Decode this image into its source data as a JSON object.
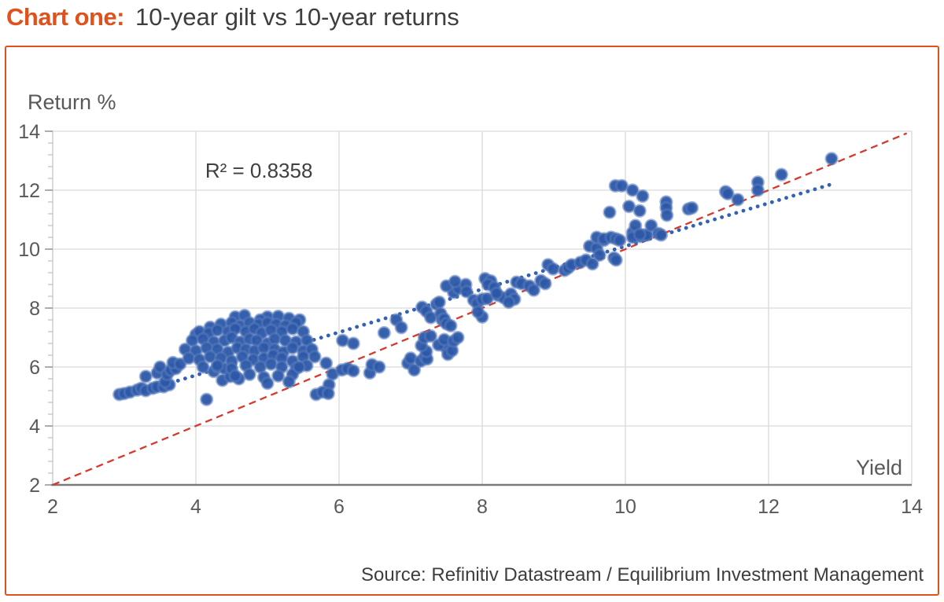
{
  "page": {
    "title_label": "Chart one:",
    "title_text": "10-year gilt vs 10-year returns",
    "source": "Source: Refinitiv Datastream / Equilibrium Investment Management"
  },
  "chart_data": {
    "type": "scatter",
    "title": "10-year gilt vs 10-year returns",
    "xlabel": "Yield",
    "ylabel": "Return %",
    "xlim": [
      2,
      14
    ],
    "ylim": [
      2,
      14
    ],
    "xticks": [
      2,
      4,
      6,
      8,
      10,
      12,
      14
    ],
    "yticks": [
      2,
      4,
      6,
      8,
      10,
      12,
      14
    ],
    "y_minor_unit": 0.4,
    "grid": true,
    "legend": false,
    "r2_annotation": {
      "text": "R² = 0.8358",
      "x": 4.13,
      "y": 12.43
    },
    "identity_line": {
      "style": "dashed",
      "from": [
        2,
        2
      ],
      "to": [
        13.93,
        13.93
      ]
    },
    "trendline": {
      "style": "dotted",
      "slope": 0.73,
      "intercept": 2.8,
      "x_start": 2.95,
      "x_end": 12.88
    },
    "colors": {
      "accent_orange": "#E0521B",
      "point": "#2B57A6",
      "point_halo": "rgba(88,122,188,0.55)",
      "trendline": "#3462B3",
      "identity_line": "#D6392E",
      "grid": "#D9D9D9",
      "axis": "#7A7A7A",
      "tick_text": "#58595B"
    },
    "points": [
      [
        2.93,
        5.07
      ],
      [
        3.0,
        5.1
      ],
      [
        3.08,
        5.15
      ],
      [
        3.18,
        5.22
      ],
      [
        3.24,
        5.28
      ],
      [
        3.3,
        5.2
      ],
      [
        3.4,
        5.28
      ],
      [
        3.46,
        5.33
      ],
      [
        3.55,
        5.33
      ],
      [
        3.63,
        5.4
      ],
      [
        3.3,
        5.68
      ],
      [
        3.46,
        5.8
      ],
      [
        3.5,
        6.0
      ],
      [
        3.57,
        5.5
      ],
      [
        3.6,
        5.75
      ],
      [
        3.65,
        5.9
      ],
      [
        3.72,
        5.95
      ],
      [
        3.68,
        6.15
      ],
      [
        3.78,
        6.1
      ],
      [
        4.15,
        4.9
      ],
      [
        4.25,
        5.85
      ],
      [
        4.3,
        6.0
      ],
      [
        4.37,
        5.55
      ],
      [
        4.4,
        5.95
      ],
      [
        4.48,
        5.68
      ],
      [
        4.6,
        5.6
      ],
      [
        4.55,
        7.7
      ],
      [
        4.68,
        7.75
      ],
      [
        5.0,
        7.7
      ],
      [
        5.15,
        7.72
      ],
      [
        5.3,
        7.65
      ],
      [
        4.9,
        7.6
      ],
      [
        5.45,
        7.6
      ],
      [
        4.2,
        7.35
      ],
      [
        4.35,
        7.45
      ],
      [
        4.5,
        7.5
      ],
      [
        4.62,
        7.4
      ],
      [
        4.75,
        7.5
      ],
      [
        4.88,
        7.45
      ],
      [
        5.0,
        7.5
      ],
      [
        5.12,
        7.45
      ],
      [
        5.25,
        7.4
      ],
      [
        5.4,
        7.5
      ],
      [
        4.0,
        7.1
      ],
      [
        4.05,
        7.2
      ],
      [
        4.18,
        7.15
      ],
      [
        4.3,
        7.25
      ],
      [
        4.45,
        7.2
      ],
      [
        4.55,
        7.3
      ],
      [
        4.7,
        7.2
      ],
      [
        4.82,
        7.3
      ],
      [
        4.92,
        7.15
      ],
      [
        5.05,
        7.25
      ],
      [
        5.2,
        7.2
      ],
      [
        5.35,
        7.3
      ],
      [
        5.5,
        7.2
      ],
      [
        3.95,
        6.9
      ],
      [
        4.1,
        6.95
      ],
      [
        4.25,
        6.85
      ],
      [
        4.4,
        6.9
      ],
      [
        4.5,
        7.0
      ],
      [
        4.62,
        6.85
      ],
      [
        4.75,
        6.95
      ],
      [
        4.85,
        6.9
      ],
      [
        5.0,
        6.8
      ],
      [
        5.1,
        6.95
      ],
      [
        5.25,
        6.9
      ],
      [
        5.4,
        6.85
      ],
      [
        5.55,
        6.9
      ],
      [
        3.85,
        6.6
      ],
      [
        4.0,
        6.55
      ],
      [
        4.15,
        6.65
      ],
      [
        4.3,
        6.6
      ],
      [
        4.45,
        6.5
      ],
      [
        4.58,
        6.65
      ],
      [
        4.7,
        6.6
      ],
      [
        4.82,
        6.55
      ],
      [
        4.95,
        6.65
      ],
      [
        5.1,
        6.6
      ],
      [
        5.22,
        6.5
      ],
      [
        5.35,
        6.65
      ],
      [
        5.5,
        6.55
      ],
      [
        5.62,
        6.6
      ],
      [
        3.9,
        6.3
      ],
      [
        4.05,
        6.25
      ],
      [
        4.2,
        6.35
      ],
      [
        4.35,
        6.3
      ],
      [
        4.5,
        6.2
      ],
      [
        4.65,
        6.35
      ],
      [
        4.8,
        6.25
      ],
      [
        4.95,
        6.3
      ],
      [
        5.08,
        6.4
      ],
      [
        5.2,
        6.3
      ],
      [
        5.35,
        6.2
      ],
      [
        5.5,
        6.35
      ],
      [
        4.1,
        6.0
      ],
      [
        4.3,
        6.05
      ],
      [
        4.5,
        5.95
      ],
      [
        4.7,
        6.05
      ],
      [
        4.9,
        6.0
      ],
      [
        5.05,
        6.1
      ],
      [
        5.2,
        6.0
      ],
      [
        5.4,
        5.95
      ],
      [
        5.55,
        6.05
      ],
      [
        4.55,
        5.7
      ],
      [
        4.75,
        5.75
      ],
      [
        4.95,
        5.65
      ],
      [
        5.15,
        5.7
      ],
      [
        5.35,
        5.75
      ],
      [
        5.0,
        5.45
      ],
      [
        5.3,
        5.5
      ],
      [
        5.44,
        6.0
      ],
      [
        5.66,
        6.35
      ],
      [
        5.82,
        6.13
      ],
      [
        5.91,
        5.76
      ],
      [
        6.04,
        5.9
      ],
      [
        6.12,
        5.95
      ],
      [
        6.2,
        5.87
      ],
      [
        5.86,
        5.4
      ],
      [
        5.68,
        5.07
      ],
      [
        5.77,
        5.15
      ],
      [
        5.85,
        5.1
      ],
      [
        6.43,
        5.8
      ],
      [
        6.46,
        6.08
      ],
      [
        6.56,
        6.0
      ],
      [
        6.96,
        6.13
      ],
      [
        7.0,
        6.3
      ],
      [
        7.05,
        5.9
      ],
      [
        7.14,
        6.2
      ],
      [
        7.2,
        6.35
      ],
      [
        7.23,
        6.27
      ],
      [
        7.22,
        6.53
      ],
      [
        7.49,
        6.67
      ],
      [
        7.52,
        6.43
      ],
      [
        7.58,
        6.56
      ],
      [
        6.05,
        6.9
      ],
      [
        6.2,
        6.8
      ],
      [
        6.63,
        7.16
      ],
      [
        6.8,
        7.6
      ],
      [
        6.87,
        7.34
      ],
      [
        7.15,
        6.73
      ],
      [
        7.19,
        7.0
      ],
      [
        7.28,
        7.05
      ],
      [
        7.39,
        6.75
      ],
      [
        7.47,
        6.93
      ],
      [
        7.6,
        6.88
      ],
      [
        7.66,
        7.0
      ],
      [
        7.16,
        8.03
      ],
      [
        7.22,
        7.89
      ],
      [
        7.28,
        7.68
      ],
      [
        7.36,
        8.13
      ],
      [
        7.4,
        8.2
      ],
      [
        7.42,
        7.81
      ],
      [
        7.44,
        7.6
      ],
      [
        7.47,
        7.63
      ],
      [
        7.5,
        7.47
      ],
      [
        7.56,
        7.4
      ],
      [
        7.6,
        8.53
      ],
      [
        7.67,
        8.67
      ],
      [
        7.77,
        8.8
      ],
      [
        7.78,
        8.56
      ],
      [
        7.88,
        8.27
      ],
      [
        7.93,
        8.16
      ],
      [
        8.0,
        8.3
      ],
      [
        8.0,
        7.7
      ],
      [
        7.94,
        7.87
      ],
      [
        7.5,
        8.75
      ],
      [
        7.62,
        8.9
      ],
      [
        8.04,
        9.0
      ],
      [
        8.12,
        8.92
      ],
      [
        8.08,
        8.8
      ],
      [
        8.17,
        8.7
      ],
      [
        8.22,
        8.43
      ],
      [
        8.3,
        8.35
      ],
      [
        8.4,
        8.48
      ],
      [
        8.07,
        8.32
      ],
      [
        8.2,
        8.5
      ],
      [
        8.45,
        8.3
      ],
      [
        8.37,
        8.2
      ],
      [
        8.48,
        8.88
      ],
      [
        8.55,
        8.83
      ],
      [
        8.66,
        8.75
      ],
      [
        8.72,
        8.61
      ],
      [
        8.82,
        8.93
      ],
      [
        8.88,
        8.83
      ],
      [
        8.92,
        9.47
      ],
      [
        8.99,
        9.33
      ],
      [
        9.15,
        9.28
      ],
      [
        9.2,
        9.36
      ],
      [
        9.25,
        9.47
      ],
      [
        9.37,
        9.55
      ],
      [
        9.45,
        9.63
      ],
      [
        9.5,
        10.1
      ],
      [
        9.54,
        9.5
      ],
      [
        9.6,
        10.03
      ],
      [
        9.64,
        9.8
      ],
      [
        9.6,
        10.4
      ],
      [
        9.7,
        10.3
      ],
      [
        9.7,
        10.35
      ],
      [
        9.78,
        11.25
      ],
      [
        9.8,
        10.4
      ],
      [
        9.84,
        9.7
      ],
      [
        9.86,
        12.15
      ],
      [
        9.87,
        10.35
      ],
      [
        9.87,
        9.63
      ],
      [
        9.92,
        10.3
      ],
      [
        9.95,
        12.15
      ],
      [
        10.1,
        12.0
      ],
      [
        10.05,
        11.45
      ],
      [
        10.1,
        10.56
      ],
      [
        10.14,
        10.8
      ],
      [
        10.2,
        10.43
      ],
      [
        10.2,
        11.3
      ],
      [
        10.24,
        11.8
      ],
      [
        10.25,
        10.48
      ],
      [
        10.3,
        10.48
      ],
      [
        10.36,
        10.8
      ],
      [
        10.46,
        10.53
      ],
      [
        10.5,
        10.48
      ],
      [
        10.57,
        11.6
      ],
      [
        10.57,
        11.4
      ],
      [
        10.58,
        11.15
      ],
      [
        10.1,
        10.4
      ],
      [
        10.2,
        10.5
      ],
      [
        10.88,
        11.36
      ],
      [
        10.93,
        11.4
      ],
      [
        11.4,
        11.95
      ],
      [
        11.43,
        11.88
      ],
      [
        11.57,
        11.68
      ],
      [
        11.85,
        12.27
      ],
      [
        11.85,
        12.0
      ],
      [
        12.18,
        12.53
      ],
      [
        12.88,
        13.07
      ]
    ]
  }
}
